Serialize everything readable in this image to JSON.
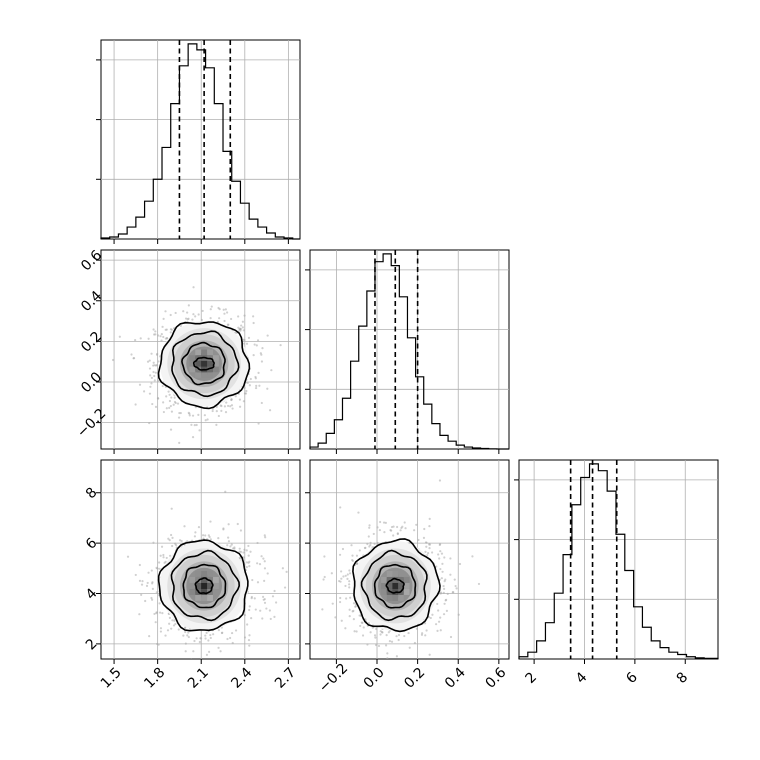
{
  "chart_data": {
    "type": "corner",
    "grid": true,
    "parameters": [
      {
        "range": [
          1.41,
          2.78
        ],
        "ticks": [
          1.5,
          1.8,
          2.1,
          2.4,
          2.7
        ],
        "tick_labels": [
          "1.5",
          "1.8",
          "2.1",
          "2.4",
          "2.7"
        ],
        "quantiles": [
          1.95,
          2.12,
          2.3
        ],
        "hist_edges": [
          1.41,
          1.47,
          1.53,
          1.59,
          1.65,
          1.71,
          1.77,
          1.83,
          1.89,
          1.95,
          2.01,
          2.07,
          2.13,
          2.19,
          2.25,
          2.31,
          2.37,
          2.43,
          2.49,
          2.55,
          2.61,
          2.67,
          2.73,
          2.78
        ],
        "hist_counts": [
          0.5,
          1,
          2.5,
          6,
          11,
          19,
          30,
          46,
          68,
          87,
          98,
          95,
          86,
          68,
          44,
          29,
          18,
          10,
          6,
          3,
          1,
          0.5,
          0
        ]
      },
      {
        "range": [
          -0.33,
          0.65
        ],
        "ticks": [
          -0.2,
          0.0,
          0.2,
          0.4,
          0.6
        ],
        "tick_labels": [
          "−0.2",
          "0.0",
          "0.2",
          "0.4",
          "0.6"
        ],
        "quantiles": [
          -0.01,
          0.09,
          0.2
        ],
        "hist_edges": [
          -0.33,
          -0.29,
          -0.25,
          -0.21,
          -0.17,
          -0.13,
          -0.09,
          -0.05,
          -0.01,
          0.03,
          0.07,
          0.11,
          0.15,
          0.19,
          0.23,
          0.27,
          0.31,
          0.35,
          0.39,
          0.43,
          0.47,
          0.51,
          0.55,
          0.59,
          0.65
        ],
        "hist_counts": [
          1,
          3,
          8,
          15,
          26,
          45,
          63,
          81,
          96,
          100,
          94,
          78,
          57,
          37,
          23,
          13,
          7,
          4,
          2,
          1,
          0.5,
          0.3,
          0.1,
          0
        ]
      },
      {
        "range": [
          1.4,
          9.3
        ],
        "ticks": [
          2,
          4,
          6,
          8
        ],
        "tick_labels": [
          "2",
          "4",
          "6",
          "8"
        ],
        "quantiles": [
          3.45,
          4.32,
          5.28
        ],
        "hist_edges": [
          1.4,
          1.75,
          2.1,
          2.45,
          2.8,
          3.15,
          3.5,
          3.85,
          4.2,
          4.55,
          4.9,
          5.25,
          5.6,
          5.95,
          6.3,
          6.65,
          7.0,
          7.35,
          7.7,
          8.05,
          8.4,
          8.75,
          9.3
        ],
        "hist_counts": [
          1,
          3,
          8,
          16,
          29,
          46,
          68,
          80,
          86,
          83,
          74,
          55,
          39,
          23,
          14,
          8,
          5,
          3,
          2,
          1,
          0.5,
          0.3
        ]
      }
    ],
    "marginal_y_ticks": [
      0.3,
      0.6,
      0.9
    ],
    "pairs": [
      {
        "x": 0,
        "y": 1,
        "mean": [
          2.12,
          0.09
        ],
        "sd": [
          0.145,
          0.1
        ],
        "contour_levels": [
          {
            "scale": [
              0.48,
              0.3
            ],
            "points": 10
          },
          {
            "scale": [
              1.0,
              1.0
            ],
            "points": 28
          },
          {
            "scale": [
              1.55,
              1.55
            ],
            "points": 28
          },
          {
            "scale": [
              2.1,
              2.1
            ],
            "points": 32
          }
        ]
      },
      {
        "x": 0,
        "y": 2,
        "mean": [
          2.12,
          4.3
        ],
        "sd": [
          0.145,
          0.85
        ],
        "contour_levels": [
          {
            "scale": [
              0.4,
              0.35
            ],
            "points": 10
          },
          {
            "scale": [
              1.0,
              1.0
            ],
            "points": 28
          },
          {
            "scale": [
              1.55,
              1.55
            ],
            "points": 28
          },
          {
            "scale": [
              2.1,
              2.1
            ],
            "points": 32
          }
        ]
      },
      {
        "x": 1,
        "y": 2,
        "mean": [
          0.09,
          4.3
        ],
        "sd": [
          0.1,
          0.85
        ],
        "contour_levels": [
          {
            "scale": [
              0.42,
              0.32
            ],
            "points": 10
          },
          {
            "scale": [
              1.0,
              1.0
            ],
            "points": 28
          },
          {
            "scale": [
              1.55,
              1.55
            ],
            "points": 28
          },
          {
            "scale": [
              2.1,
              2.1
            ],
            "points": 32
          }
        ]
      }
    ],
    "colors": {
      "scatter": "#a9a9a9",
      "line": "#000000"
    }
  }
}
